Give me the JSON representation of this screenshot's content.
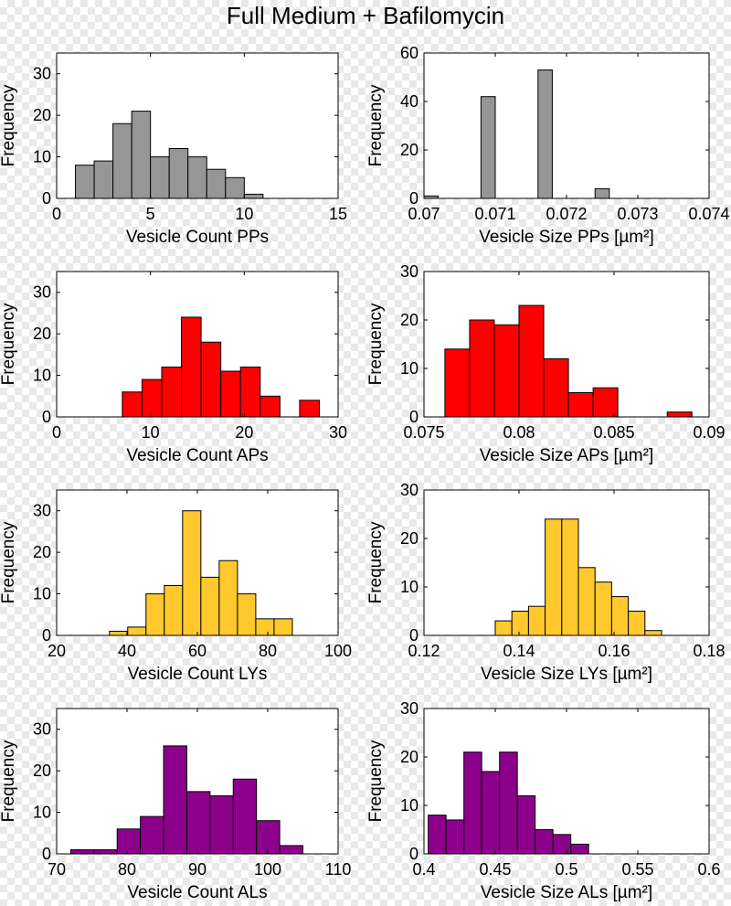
{
  "figure": {
    "title": "Full Medium + Bafilomycin"
  },
  "colors": {
    "pp": "#969696",
    "ap": "#ff0000",
    "ly": "#ffc92e",
    "al": "#8c008c",
    "edge": "#000000"
  },
  "chart_data": [
    {
      "type": "bar",
      "id": "count-pp",
      "xlabel": "Vesicle Count PPs",
      "ylabel": "Frequency",
      "xlim": [
        0,
        15
      ],
      "ylim": [
        0,
        35
      ],
      "xticks": [
        0,
        5,
        10,
        15
      ],
      "xtick_labels": [
        "0",
        "5",
        "10",
        "15"
      ],
      "yticks": [
        0,
        10,
        20,
        30
      ],
      "ytick_labels": [
        "0",
        "10",
        "20",
        "30"
      ],
      "bin_edges": [
        1,
        2,
        3,
        4,
        5,
        6,
        7,
        8,
        9,
        10,
        11
      ],
      "values": [
        8,
        9,
        18,
        21,
        10,
        12,
        10,
        7,
        5,
        1
      ],
      "color": "#969696"
    },
    {
      "type": "bar",
      "id": "size-pp",
      "xlabel": "Vesicle Size PPs [µm²]",
      "ylabel": "Frequency",
      "xlim": [
        0.07,
        0.074
      ],
      "ylim": [
        0,
        60
      ],
      "xticks": [
        0.07,
        0.071,
        0.072,
        0.073,
        0.074
      ],
      "xtick_labels": [
        "0.07",
        "0.071",
        "0.072",
        "0.073",
        "0.074"
      ],
      "yticks": [
        0,
        20,
        40,
        60
      ],
      "ytick_labels": [
        "0",
        "20",
        "40",
        "60"
      ],
      "bin_edges": [
        0.07,
        0.0702,
        0.0704,
        0.0706,
        0.0708,
        0.071,
        0.0712,
        0.0714,
        0.0716,
        0.0718,
        0.072,
        0.0722,
        0.0724,
        0.0726,
        0.0728,
        0.073
      ],
      "values": [
        1,
        0,
        0,
        0,
        42,
        0,
        0,
        0,
        53,
        0,
        0,
        0,
        4,
        0,
        0
      ],
      "color": "#969696"
    },
    {
      "type": "bar",
      "id": "count-ap",
      "xlabel": "Vesicle Count APs",
      "ylabel": "Frequency",
      "xlim": [
        0,
        30
      ],
      "ylim": [
        0,
        35
      ],
      "xticks": [
        0,
        10,
        20,
        30
      ],
      "xtick_labels": [
        "0",
        "10",
        "20",
        "30"
      ],
      "yticks": [
        0,
        10,
        20,
        30
      ],
      "ytick_labels": [
        "0",
        "10",
        "20",
        "30"
      ],
      "bin_edges": [
        7,
        9.1,
        11.2,
        13.3,
        15.4,
        17.5,
        19.6,
        21.7,
        23.8,
        25.9,
        28
      ],
      "values": [
        6,
        9,
        12,
        24,
        18,
        11,
        12,
        5,
        0,
        4
      ],
      "color": "#ff0000"
    },
    {
      "type": "bar",
      "id": "size-ap",
      "xlabel": "Vesicle Size APs [µm²]",
      "ylabel": "Frequency",
      "xlim": [
        0.075,
        0.09
      ],
      "ylim": [
        0,
        30
      ],
      "xticks": [
        0.075,
        0.08,
        0.085,
        0.09
      ],
      "xtick_labels": [
        "0.075",
        "0.08",
        "0.085",
        "0.09"
      ],
      "yticks": [
        0,
        10,
        20,
        30
      ],
      "ytick_labels": [
        "0",
        "10",
        "20",
        "30"
      ],
      "bin_edges": [
        0.0761,
        0.0774,
        0.0787,
        0.08,
        0.0813,
        0.0826,
        0.0839,
        0.0852,
        0.0865,
        0.0878,
        0.0891
      ],
      "values": [
        14,
        20,
        19,
        23,
        12,
        5,
        6,
        0,
        0,
        1
      ],
      "color": "#ff0000"
    },
    {
      "type": "bar",
      "id": "count-ly",
      "xlabel": "Vesicle Count LYs",
      "ylabel": "Frequency",
      "xlim": [
        20,
        100
      ],
      "ylim": [
        0,
        35
      ],
      "xticks": [
        20,
        40,
        60,
        80,
        100
      ],
      "xtick_labels": [
        "20",
        "40",
        "60",
        "80",
        "100"
      ],
      "yticks": [
        0,
        10,
        20,
        30
      ],
      "ytick_labels": [
        "0",
        "10",
        "20",
        "30"
      ],
      "bin_edges": [
        35,
        40.2,
        45.4,
        50.6,
        55.8,
        61,
        66.2,
        71.4,
        76.6,
        81.8,
        87
      ],
      "values": [
        1,
        2,
        10,
        12,
        30,
        14,
        18,
        10,
        4,
        4
      ],
      "color": "#ffc92e"
    },
    {
      "type": "bar",
      "id": "size-ly",
      "xlabel": "Vesicle Size LYs [µm²]",
      "ylabel": "Frequency",
      "xlim": [
        0.12,
        0.18
      ],
      "ylim": [
        0,
        30
      ],
      "xticks": [
        0.12,
        0.14,
        0.16,
        0.18
      ],
      "xtick_labels": [
        "0.12",
        "0.14",
        "0.16",
        "0.18"
      ],
      "yticks": [
        0,
        10,
        20,
        30
      ],
      "ytick_labels": [
        "0",
        "10",
        "20",
        "30"
      ],
      "bin_edges": [
        0.135,
        0.1385,
        0.142,
        0.1455,
        0.149,
        0.1525,
        0.156,
        0.1595,
        0.163,
        0.1665,
        0.17
      ],
      "values": [
        3,
        5,
        6,
        24,
        24,
        14,
        11,
        8,
        5,
        1
      ],
      "color": "#ffc92e"
    },
    {
      "type": "bar",
      "id": "count-al",
      "xlabel": "Vesicle Count ALs",
      "ylabel": "Frequency",
      "xlim": [
        70,
        110
      ],
      "ylim": [
        0,
        35
      ],
      "xticks": [
        70,
        80,
        90,
        100,
        110
      ],
      "xtick_labels": [
        "70",
        "80",
        "90",
        "100",
        "110"
      ],
      "yticks": [
        0,
        10,
        20,
        30
      ],
      "ytick_labels": [
        "0",
        "10",
        "20",
        "30"
      ],
      "bin_edges": [
        72,
        75.3,
        78.6,
        81.9,
        85.2,
        88.5,
        91.8,
        95.1,
        98.4,
        101.7,
        105
      ],
      "values": [
        1,
        1,
        6,
        9,
        26,
        15,
        14,
        18,
        8,
        2
      ],
      "color": "#8c008c"
    },
    {
      "type": "bar",
      "id": "size-al",
      "xlabel": "Vesicle Size ALs [µm²]",
      "ylabel": "Frequency",
      "xlim": [
        0.4,
        0.6
      ],
      "ylim": [
        0,
        30
      ],
      "xticks": [
        0.4,
        0.45,
        0.5,
        0.55,
        0.6
      ],
      "xtick_labels": [
        "0.4",
        "0.45",
        "0.5",
        "0.55",
        "0.6"
      ],
      "yticks": [
        0,
        10,
        20,
        30
      ],
      "ytick_labels": [
        "0",
        "10",
        "20",
        "30"
      ],
      "bin_edges": [
        0.403,
        0.4155,
        0.428,
        0.4405,
        0.453,
        0.4655,
        0.478,
        0.4905,
        0.503,
        0.5155,
        0.528
      ],
      "values": [
        8,
        7,
        21,
        17,
        21,
        12,
        5,
        4,
        2,
        0
      ],
      "color": "#8c008c"
    }
  ]
}
